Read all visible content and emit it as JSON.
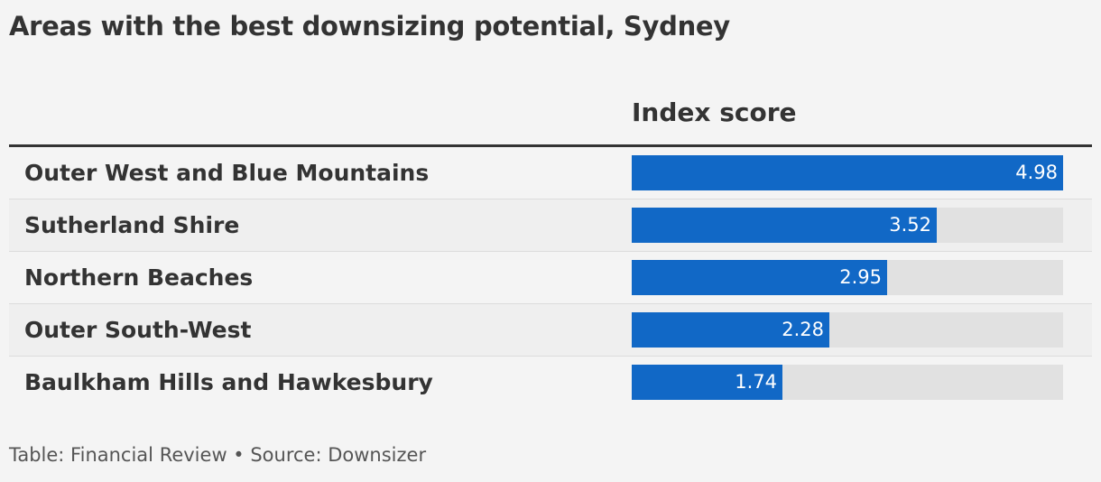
{
  "title": "Areas with the best downsizing potential, Sydney",
  "column_header": "Index score",
  "footer": "Table: Financial Review • Source: Downsizer",
  "colors": {
    "bar": "#1168c6",
    "track": "#e1e1e1",
    "value_text": "#ffffff"
  },
  "chart_data": {
    "type": "table",
    "title": "Areas with the best downsizing potential, Sydney",
    "columns": [
      "",
      "Index score"
    ],
    "categories": [
      "Outer West and Blue Mountains",
      "Sutherland Shire",
      "Northern Beaches",
      "Outer South-West",
      "Baulkham Hills and Hawkesbury"
    ],
    "values": [
      4.98,
      3.52,
      2.95,
      2.28,
      1.74
    ],
    "value_labels": [
      "4.98",
      "3.52",
      "2.95",
      "2.28",
      "1.74"
    ],
    "bar_max": 4.98
  }
}
